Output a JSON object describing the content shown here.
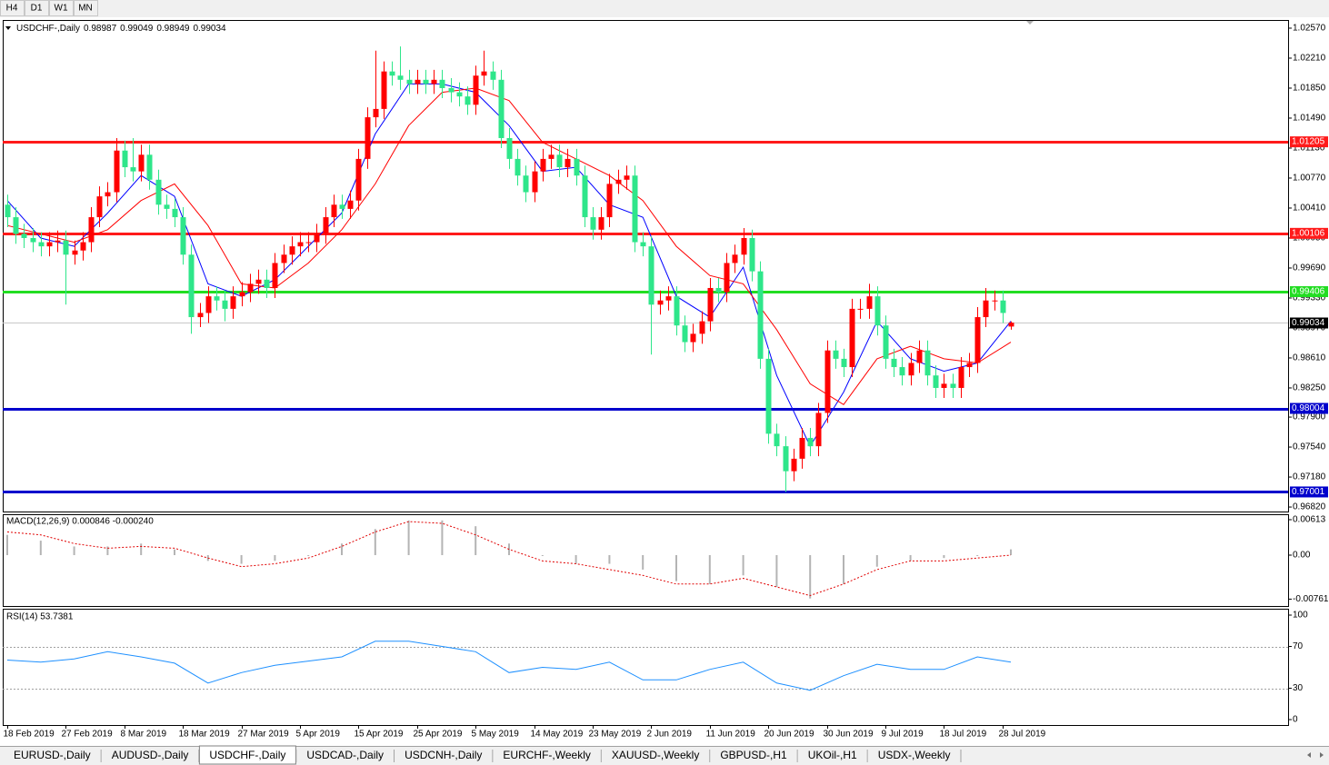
{
  "timeframes": [
    "H4",
    "D1",
    "W1",
    "MN"
  ],
  "tabs": [
    "EURUSD-,Daily",
    "AUDUSD-,Daily",
    "USDCHF-,Daily",
    "USDCAD-,Daily",
    "USDCNH-,Daily",
    "EURCHF-,Weekly",
    "XAUUSD-,Weekly",
    "GBPUSD-,H1",
    "UKOil-,H1",
    "USDX-,Weekly"
  ],
  "active_tab": 2,
  "chart_data": [
    {
      "type": "candlestick",
      "title": "USDCHF-,Daily",
      "up_color": "#ff0000",
      "down_color": "#2ee68a",
      "ylim": [
        0.96766,
        1.02668
      ],
      "yticks": [
        {
          "value": 1.0257,
          "label": "1.02570"
        },
        {
          "value": 1.0221,
          "label": "1.02210"
        },
        {
          "value": 1.0185,
          "label": "1.01850"
        },
        {
          "value": 1.0149,
          "label": "1.01490"
        },
        {
          "value": 1.0113,
          "label": "1.01130"
        },
        {
          "value": 1.0077,
          "label": "1.00770"
        },
        {
          "value": 1.0041,
          "label": "1.00410"
        },
        {
          "value": 1.0005,
          "label": "1.00050"
        },
        {
          "value": 0.9969,
          "label": "0.99690"
        },
        {
          "value": 0.9933,
          "label": "0.99330"
        },
        {
          "value": 0.9897,
          "label": "0.98970"
        },
        {
          "value": 0.9861,
          "label": "0.98610"
        },
        {
          "value": 0.9825,
          "label": "0.98250"
        },
        {
          "value": 0.979,
          "label": "0.97900"
        },
        {
          "value": 0.9754,
          "label": "0.97540"
        },
        {
          "value": 0.9718,
          "label": "0.97180"
        },
        {
          "value": 0.9682,
          "label": "0.96820"
        }
      ],
      "xticks": [
        {
          "value": 0,
          "label": "18 Feb 2019"
        },
        {
          "value": 7,
          "label": "27 Feb 2019"
        },
        {
          "value": 14,
          "label": "8 Mar 2019"
        },
        {
          "value": 21,
          "label": "18 Mar 2019"
        },
        {
          "value": 28,
          "label": "27 Mar 2019"
        },
        {
          "value": 35,
          "label": "5 Apr 2019"
        },
        {
          "value": 42,
          "label": "15 Apr 2019"
        },
        {
          "value": 49,
          "label": "25 Apr 2019"
        },
        {
          "value": 56,
          "label": "5 May 2019"
        },
        {
          "value": 63,
          "label": "14 May 2019"
        },
        {
          "value": 70,
          "label": "23 May 2019"
        },
        {
          "value": 77,
          "label": "2 Jun 2019"
        },
        {
          "value": 84,
          "label": "11 Jun 2019"
        },
        {
          "value": 91,
          "label": "20 Jun 2019"
        },
        {
          "value": 98,
          "label": "30 Jun 2019"
        },
        {
          "value": 105,
          "label": "9 Jul 2019"
        },
        {
          "value": 112,
          "label": "18 Jul 2019"
        },
        {
          "value": 119,
          "label": "28 Jul 2019"
        }
      ],
      "open": [
        1.0045,
        1.003,
        1.001,
        1.0005,
        1.0,
        0.9995,
        1.0,
        1.0002,
        0.9985,
        0.999,
        1.0,
        1.003,
        1.0055,
        1.006,
        1.011,
        1.009,
        1.0085,
        1.0105,
        1.0075,
        1.0045,
        1.004,
        1.003,
        0.9985,
        0.991,
        0.9915,
        0.9935,
        0.993,
        0.992,
        0.9935,
        0.994,
        0.995,
        0.9955,
        0.9945,
        0.9975,
        0.9985,
        0.9995,
        1.0,
        1.0,
        1.001,
        1.003,
        1.0045,
        1.004,
        1.005,
        1.01,
        1.015,
        1.016,
        1.0205,
        1.02,
        1.0195,
        1.019,
        1.0195,
        1.019,
        1.0195,
        1.0185,
        1.018,
        1.0175,
        1.0165,
        1.02,
        1.0205,
        1.0195,
        1.0125,
        1.01,
        1.008,
        1.006,
        1.0085,
        1.01,
        1.0105,
        1.009,
        1.01,
        1.008,
        1.003,
        1.0015,
        1.003,
        1.007,
        1.0075,
        1.008,
        1.0,
        0.9995,
        0.9925,
        0.993,
        0.9935,
        0.99,
        0.988,
        0.989,
        0.9905,
        0.9945,
        0.994,
        0.9975,
        0.9985,
        1.0005,
        0.9965,
        0.986,
        0.977,
        0.9755,
        0.9725,
        0.974,
        0.9765,
        0.9755,
        0.9795,
        0.987,
        0.986,
        0.985,
        0.992,
        0.992,
        0.9935,
        0.99,
        0.986,
        0.985,
        0.984,
        0.9855,
        0.987,
        0.984,
        0.9825,
        0.983,
        0.9825,
        0.985,
        0.9855,
        0.991,
        0.993,
        0.993,
        0.98987
      ],
      "high": [
        1.0057,
        1.0042,
        1.0022,
        1.0017,
        1.0012,
        1.0012,
        1.0014,
        1.0014,
        1.0002,
        1.0012,
        1.0042,
        1.0067,
        1.0072,
        1.0125,
        1.0122,
        1.0125,
        1.0117,
        1.0117,
        1.0087,
        1.0057,
        1.0052,
        1.0042,
        0.9997,
        0.9927,
        0.9947,
        0.9947,
        0.9942,
        0.9947,
        0.9952,
        0.9962,
        0.9967,
        0.9967,
        0.9987,
        0.9997,
        1.0007,
        1.0012,
        1.0012,
        1.0022,
        1.0042,
        1.0057,
        1.0057,
        1.0062,
        1.0112,
        1.0162,
        1.023,
        1.0217,
        1.0217,
        1.0235,
        1.0207,
        1.0207,
        1.0207,
        1.0207,
        1.0207,
        1.0197,
        1.0192,
        1.0187,
        1.0212,
        1.023,
        1.0217,
        1.0207,
        1.0137,
        1.0112,
        1.0092,
        1.0097,
        1.0112,
        1.0117,
        1.0117,
        1.0112,
        1.0112,
        1.0092,
        1.0042,
        1.0042,
        1.0082,
        1.0087,
        1.0092,
        1.0092,
        1.0012,
        1.0007,
        0.9942,
        0.9947,
        0.9947,
        0.9912,
        0.9902,
        0.9917,
        0.9957,
        0.9957,
        0.9987,
        0.9997,
        1.0017,
        1.0015,
        0.9977,
        0.9872,
        0.9782,
        0.9767,
        0.9752,
        0.9777,
        0.9777,
        0.9807,
        0.9882,
        0.9882,
        0.9872,
        0.9932,
        0.9932,
        0.995,
        0.9947,
        0.9912,
        0.9872,
        0.9862,
        0.9867,
        0.9882,
        0.9882,
        0.9852,
        0.9842,
        0.9842,
        0.9862,
        0.9867,
        0.9922,
        0.9945,
        0.9942,
        0.9942,
        0.99049
      ],
      "low": [
        1.0018,
        0.9998,
        0.9993,
        0.9988,
        0.9983,
        0.9983,
        0.9988,
        0.9925,
        0.9973,
        0.9978,
        0.9988,
        1.0018,
        1.0043,
        1.0048,
        1.0078,
        1.0073,
        1.0073,
        1.0063,
        1.0033,
        1.0028,
        1.0018,
        0.9973,
        0.989,
        0.9898,
        0.9903,
        0.9918,
        0.9905,
        0.9908,
        0.9923,
        0.9928,
        0.9938,
        0.9933,
        0.9933,
        0.9963,
        0.9973,
        0.9983,
        0.9988,
        0.9988,
        0.9998,
        1.0018,
        1.0028,
        1.0028,
        1.0038,
        1.0088,
        1.0138,
        1.0148,
        1.0188,
        1.0183,
        1.0178,
        1.0178,
        1.0178,
        1.0178,
        1.0173,
        1.0168,
        1.0163,
        1.0153,
        1.0153,
        1.0188,
        1.0183,
        1.0113,
        1.0088,
        1.0068,
        1.0048,
        1.0048,
        1.0073,
        1.0088,
        1.0078,
        1.0078,
        1.0068,
        1.0018,
        1.0003,
        1.0003,
        1.0018,
        1.0058,
        1.0063,
        0.9988,
        0.9983,
        0.9865,
        0.9913,
        0.9918,
        0.9888,
        0.9868,
        0.9868,
        0.9878,
        0.9893,
        0.9928,
        0.9928,
        0.9963,
        0.9973,
        0.9953,
        0.9848,
        0.9758,
        0.9743,
        0.97,
        0.9713,
        0.9728,
        0.9743,
        0.9743,
        0.9783,
        0.9848,
        0.9838,
        0.9838,
        0.9908,
        0.9908,
        0.9888,
        0.9848,
        0.9838,
        0.9828,
        0.9828,
        0.9843,
        0.9828,
        0.9813,
        0.9813,
        0.9813,
        0.9813,
        0.9838,
        0.9843,
        0.9898,
        0.9918,
        0.9903,
        0.98949
      ],
      "close": [
        1.003,
        1.001,
        1.0005,
        1.0,
        0.9995,
        1.0,
        1.0002,
        0.9985,
        0.999,
        1.0,
        1.003,
        1.0055,
        1.006,
        1.011,
        1.009,
        1.0085,
        1.0105,
        1.0075,
        1.0045,
        1.004,
        1.003,
        0.9985,
        0.991,
        0.9915,
        0.9935,
        0.993,
        0.992,
        0.9935,
        0.994,
        0.995,
        0.9955,
        0.9945,
        0.9975,
        0.9985,
        0.9995,
        1.0,
        1.0,
        1.001,
        1.003,
        1.0045,
        1.004,
        1.005,
        1.01,
        1.015,
        1.016,
        1.0205,
        1.02,
        1.0195,
        1.019,
        1.0195,
        1.019,
        1.0195,
        1.0185,
        1.018,
        1.0175,
        1.0165,
        1.02,
        1.0205,
        1.0195,
        1.0125,
        1.01,
        1.008,
        1.006,
        1.0085,
        1.01,
        1.0105,
        1.009,
        1.01,
        1.008,
        1.003,
        1.0015,
        1.003,
        1.007,
        1.0075,
        1.008,
        1.0,
        0.9995,
        0.9925,
        0.993,
        0.9935,
        0.99,
        0.988,
        0.989,
        0.9905,
        0.9945,
        0.994,
        0.9975,
        0.9985,
        1.0005,
        0.9965,
        0.986,
        0.977,
        0.9755,
        0.9725,
        0.974,
        0.9765,
        0.9755,
        0.9795,
        0.987,
        0.986,
        0.985,
        0.992,
        0.992,
        0.9935,
        0.99,
        0.986,
        0.985,
        0.984,
        0.9855,
        0.987,
        0.984,
        0.9825,
        0.983,
        0.9825,
        0.985,
        0.9855,
        0.991,
        0.993,
        0.993,
        0.9915,
        0.99034
      ],
      "overlays": [
        {
          "color": "#0000ff",
          "x": [
            0,
            4,
            8,
            12,
            16,
            20,
            24,
            28,
            32,
            36,
            40,
            44,
            48,
            52,
            56,
            60,
            64,
            68,
            72,
            76,
            80,
            84,
            88,
            92,
            96,
            100,
            104,
            108,
            112,
            116,
            120
          ],
          "values": [
            1.005,
            1.0005,
            0.9995,
            1.0035,
            1.008,
            1.0055,
            0.995,
            0.9935,
            0.9955,
            0.9995,
            1.0035,
            1.013,
            1.019,
            1.019,
            1.018,
            1.014,
            1.0085,
            1.009,
            1.0045,
            1.003,
            0.9935,
            0.991,
            0.997,
            0.984,
            0.9755,
            0.982,
            0.9905,
            0.986,
            0.9845,
            0.9855,
            0.9905
          ]
        },
        {
          "color": "#ff0000",
          "x": [
            0,
            4,
            8,
            12,
            16,
            20,
            24,
            28,
            32,
            36,
            40,
            44,
            48,
            52,
            56,
            60,
            64,
            68,
            72,
            76,
            80,
            84,
            88,
            92,
            96,
            100,
            104,
            108,
            112,
            116,
            120
          ],
          "values": [
            1.002,
            1.001,
            1.0,
            1.0015,
            1.005,
            1.007,
            1.002,
            0.995,
            0.9945,
            0.9975,
            1.0015,
            1.007,
            1.014,
            1.018,
            1.0185,
            1.017,
            1.012,
            1.01,
            1.008,
            1.005,
            0.9995,
            0.996,
            0.995,
            0.9895,
            0.983,
            0.9805,
            0.986,
            0.9875,
            0.986,
            0.9855,
            0.988
          ]
        }
      ],
      "levels": [
        {
          "value": 1.01205,
          "color": "#ff1a1a"
        },
        {
          "value": 1.00106,
          "color": "#ff1a1a"
        },
        {
          "value": 0.99406,
          "color": "#22dd22"
        },
        {
          "value": 0.98004,
          "color": "#0000cc"
        },
        {
          "value": 0.97001,
          "color": "#0000cc"
        }
      ]
    },
    {
      "type": "macd",
      "title": "MACD(12,26,9) 0.000846 -0.000240",
      "ylim": [
        -0.0088,
        0.00707
      ],
      "yticks": [
        0.00613,
        {
          "value": 0,
          "label": "0.00"
        },
        -0.007612
      ],
      "x": [
        0,
        4,
        8,
        12,
        16,
        20,
        24,
        28,
        32,
        36,
        40,
        44,
        48,
        52,
        56,
        60,
        64,
        68,
        72,
        76,
        80,
        84,
        88,
        92,
        96,
        100,
        104,
        108,
        112,
        116,
        120
      ],
      "series": [
        {
          "color": "#b4b4b4",
          "values": [
            0.0035,
            0.0025,
            0.0015,
            0.0015,
            0.002,
            0.001,
            -0.001,
            -0.0015,
            -0.001,
            0.0,
            0.002,
            0.0045,
            0.006,
            0.006,
            0.005,
            0.002,
            0.0,
            -0.0015,
            -0.0015,
            -0.0025,
            -0.0045,
            -0.005,
            -0.0035,
            -0.0055,
            -0.0075,
            -0.005,
            -0.002,
            -0.001,
            -0.0005,
            0.0,
            0.001
          ]
        },
        {
          "color": "#e00000",
          "values": [
            0.004,
            0.0035,
            0.002,
            0.0012,
            0.0015,
            0.0012,
            -0.0005,
            -0.002,
            -0.0015,
            -0.0005,
            0.0015,
            0.004,
            0.0058,
            0.0055,
            0.0035,
            0.001,
            -0.001,
            -0.0015,
            -0.0025,
            -0.0035,
            -0.005,
            -0.005,
            -0.004,
            -0.0055,
            -0.007,
            -0.005,
            -0.0025,
            -0.001,
            -0.001,
            -0.0005,
            0.0
          ]
        }
      ]
    },
    {
      "type": "line",
      "title": "RSI(14) 53.7381",
      "ylim": [
        -5.2,
        106.1
      ],
      "yticks": [
        0,
        30,
        70,
        100
      ],
      "levels": [
        70,
        30
      ],
      "x": [
        0,
        4,
        8,
        12,
        16,
        20,
        24,
        28,
        32,
        36,
        40,
        44,
        48,
        52,
        56,
        60,
        64,
        68,
        72,
        76,
        80,
        84,
        88,
        92,
        96,
        100,
        104,
        108,
        112,
        116,
        120
      ],
      "color": "#1e90ff",
      "values": [
        57,
        55,
        58,
        65,
        60,
        54,
        35,
        45,
        52,
        56,
        60,
        75,
        75,
        70,
        65,
        45,
        50,
        48,
        55,
        38,
        38,
        48,
        55,
        35,
        28,
        42,
        53,
        48,
        48,
        60,
        55
      ]
    }
  ]
}
